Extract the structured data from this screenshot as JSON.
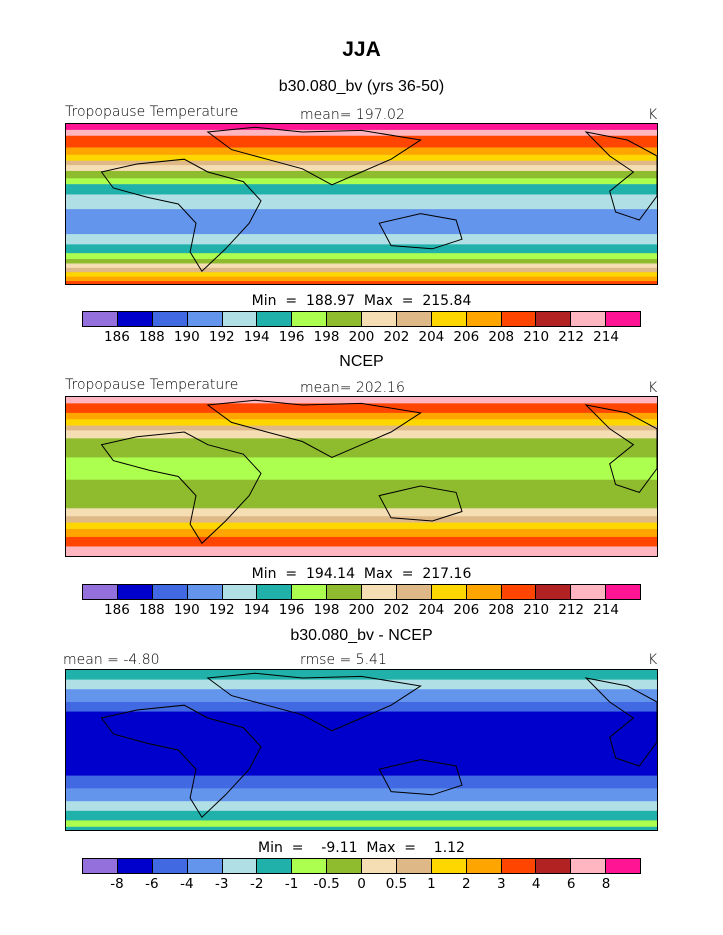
{
  "title": "JJA",
  "chart_data": [
    {
      "type": "heatmap",
      "title": "b30.080_bv (yrs 36-50)",
      "variable_label": "Tropopause Temperature",
      "mean_text": "mean=  197.02",
      "units": "K",
      "min_max_text": "Min  =  188.97  Max  =  215.84",
      "min": 188.97,
      "max": 215.84,
      "mean": 197.02,
      "colorbar_ticks": [
        "186",
        "188",
        "190",
        "192",
        "194",
        "196",
        "198",
        "200",
        "202",
        "204",
        "206",
        "208",
        "210",
        "212",
        "214"
      ],
      "bands": [
        {
          "c": "#ff1493",
          "h": 4
        },
        {
          "c": "#ffb6c1",
          "h": 4
        },
        {
          "c": "#ff4500",
          "h": 8
        },
        {
          "c": "#ffa500",
          "h": 5
        },
        {
          "c": "#ffd700",
          "h": 4
        },
        {
          "c": "#deb887",
          "h": 3
        },
        {
          "c": "#f5deb3",
          "h": 4
        },
        {
          "c": "#8fbc2f",
          "h": 5
        },
        {
          "c": "#adff4f",
          "h": 4
        },
        {
          "c": "#20b2aa",
          "h": 7
        },
        {
          "c": "#b0e0e6",
          "h": 10
        },
        {
          "c": "#6495ed",
          "h": 17
        },
        {
          "c": "#b0e0e6",
          "h": 7
        },
        {
          "c": "#20b2aa",
          "h": 6
        },
        {
          "c": "#adff4f",
          "h": 4
        },
        {
          "c": "#8fbc2f",
          "h": 3
        },
        {
          "c": "#f5deb3",
          "h": 3
        },
        {
          "c": "#deb887",
          "h": 3
        },
        {
          "c": "#ffd700",
          "h": 3
        },
        {
          "c": "#ffa500",
          "h": 3
        },
        {
          "c": "#ff4500",
          "h": 2
        }
      ]
    },
    {
      "type": "heatmap",
      "title": "NCEP",
      "variable_label": "Tropopause Temperature",
      "mean_text": "mean=  202.16",
      "units": "K",
      "min_max_text": "Min  =  194.14  Max  =  217.16",
      "min": 194.14,
      "max": 217.16,
      "mean": 202.16,
      "colorbar_ticks": [
        "186",
        "188",
        "190",
        "192",
        "194",
        "196",
        "198",
        "200",
        "202",
        "204",
        "206",
        "208",
        "210",
        "212",
        "214"
      ],
      "bands": [
        {
          "c": "#ffb6c1",
          "h": 4
        },
        {
          "c": "#ff4500",
          "h": 6
        },
        {
          "c": "#ffa500",
          "h": 4
        },
        {
          "c": "#ffd700",
          "h": 4
        },
        {
          "c": "#deb887",
          "h": 3
        },
        {
          "c": "#f5deb3",
          "h": 5
        },
        {
          "c": "#8fbc2f",
          "h": 12
        },
        {
          "c": "#adff4f",
          "h": 14
        },
        {
          "c": "#8fbc2f",
          "h": 18
        },
        {
          "c": "#f5deb3",
          "h": 5
        },
        {
          "c": "#deb887",
          "h": 4
        },
        {
          "c": "#ffd700",
          "h": 4
        },
        {
          "c": "#ffa500",
          "h": 5
        },
        {
          "c": "#ff4500",
          "h": 6
        },
        {
          "c": "#ffb6c1",
          "h": 6
        }
      ]
    },
    {
      "type": "heatmap",
      "title": "b30.080_bv - NCEP",
      "mean_text": "mean  =    -4.80",
      "rmse_text": "rmse  =    5.41",
      "units": "K",
      "min_max_text": "Min  =    -9.11  Max  =    1.12",
      "min": -9.11,
      "max": 1.12,
      "mean": -4.8,
      "rmse": 5.41,
      "colorbar_ticks": [
        "-8",
        "-6",
        "-4",
        "-3",
        "-2",
        "-1",
        "-0.5",
        "0",
        "0.5",
        "1",
        "2",
        "3",
        "4",
        "6",
        "8"
      ],
      "bands": [
        {
          "c": "#20b2aa",
          "h": 6
        },
        {
          "c": "#b0e0e6",
          "h": 6
        },
        {
          "c": "#6495ed",
          "h": 8
        },
        {
          "c": "#4169e1",
          "h": 6
        },
        {
          "c": "#0000cd",
          "h": 40
        },
        {
          "c": "#4169e1",
          "h": 8
        },
        {
          "c": "#6495ed",
          "h": 8
        },
        {
          "c": "#b0e0e6",
          "h": 6
        },
        {
          "c": "#20b2aa",
          "h": 6
        },
        {
          "c": "#adff4f",
          "h": 4
        },
        {
          "c": "#20b2aa",
          "h": 2
        }
      ]
    }
  ],
  "colorbar_colors": [
    "#9370db",
    "#0000cd",
    "#4169e1",
    "#6495ed",
    "#b0e0e6",
    "#20b2aa",
    "#adff4f",
    "#8fbc2f",
    "#f5deb3",
    "#deb887",
    "#ffd700",
    "#ffa500",
    "#ff4500",
    "#b22222",
    "#ffb6c1",
    "#ff1493"
  ]
}
